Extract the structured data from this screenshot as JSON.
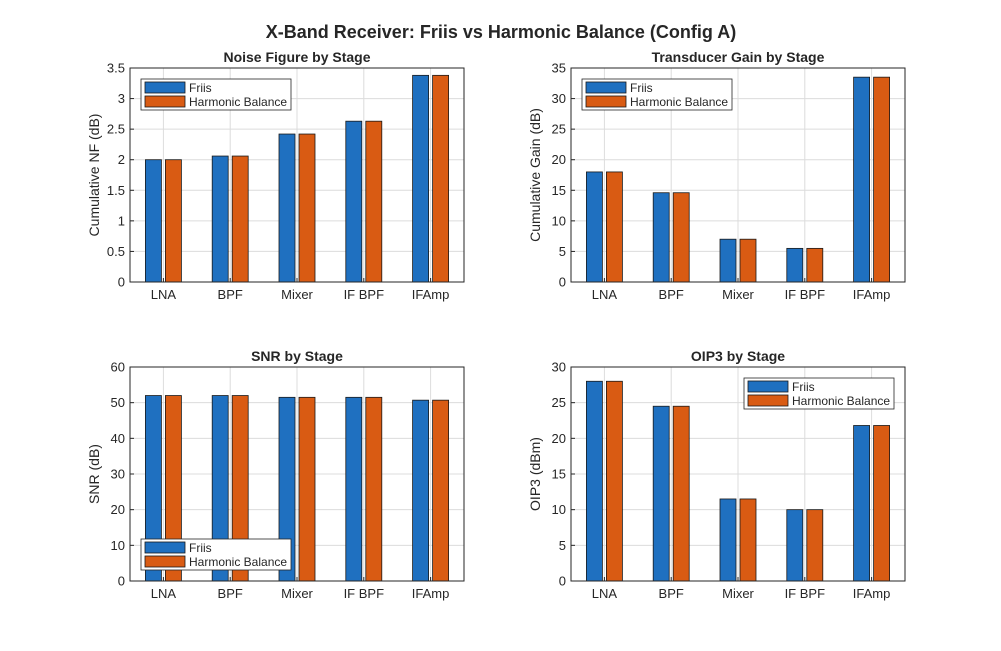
{
  "figure": {
    "title": "X-Band Receiver: Friis vs Harmonic Balance (Config A)"
  },
  "colors": {
    "friis": "#1f70c0",
    "harmonic_balance": "#d95b13",
    "grid": "#dcdcdc",
    "axis": "#262626"
  },
  "chart_data": [
    {
      "type": "bar",
      "title": "Noise Figure by Stage",
      "xlabel": "",
      "ylabel": "Cumulative NF (dB)",
      "categories": [
        "LNA",
        "BPF",
        "Mixer",
        "IF BPF",
        "IFAmp"
      ],
      "ylim": [
        0,
        3.5
      ],
      "yticks": [
        "0",
        "0.5",
        "1",
        "1.5",
        "2",
        "2.5",
        "3",
        "3.5"
      ],
      "grid": true,
      "legend_position": "top-left",
      "series": [
        {
          "name": "Friis",
          "values": [
            2.0,
            2.06,
            2.42,
            2.63,
            3.38
          ]
        },
        {
          "name": "Harmonic Balance",
          "values": [
            2.0,
            2.06,
            2.42,
            2.63,
            3.38
          ]
        }
      ]
    },
    {
      "type": "bar",
      "title": "Transducer Gain by Stage",
      "xlabel": "",
      "ylabel": "Cumulative Gain (dB)",
      "categories": [
        "LNA",
        "BPF",
        "Mixer",
        "IF BPF",
        "IFAmp"
      ],
      "ylim": [
        0,
        35
      ],
      "yticks": [
        "0",
        "5",
        "10",
        "15",
        "20",
        "25",
        "30",
        "35"
      ],
      "grid": true,
      "legend_position": "top-left",
      "series": [
        {
          "name": "Friis",
          "values": [
            18.0,
            14.6,
            7.0,
            5.5,
            33.5
          ]
        },
        {
          "name": "Harmonic Balance",
          "values": [
            18.0,
            14.6,
            7.0,
            5.5,
            33.5
          ]
        }
      ]
    },
    {
      "type": "bar",
      "title": "SNR by Stage",
      "xlabel": "",
      "ylabel": "SNR (dB)",
      "categories": [
        "LNA",
        "BPF",
        "Mixer",
        "IF BPF",
        "IFAmp"
      ],
      "ylim": [
        0,
        60
      ],
      "yticks": [
        "0",
        "10",
        "20",
        "30",
        "40",
        "50",
        "60"
      ],
      "grid": true,
      "legend_position": "bottom-left",
      "series": [
        {
          "name": "Friis",
          "values": [
            52.0,
            52.0,
            51.5,
            51.5,
            50.7
          ]
        },
        {
          "name": "Harmonic Balance",
          "values": [
            52.0,
            52.0,
            51.5,
            51.5,
            50.7
          ]
        }
      ]
    },
    {
      "type": "bar",
      "title": "OIP3 by Stage",
      "xlabel": "",
      "ylabel": "OIP3 (dBm)",
      "categories": [
        "LNA",
        "BPF",
        "Mixer",
        "IF BPF",
        "IFAmp"
      ],
      "ylim": [
        0,
        30
      ],
      "yticks": [
        "0",
        "5",
        "10",
        "15",
        "20",
        "25",
        "30"
      ],
      "grid": true,
      "legend_position": "top-right",
      "series": [
        {
          "name": "Friis",
          "values": [
            28.0,
            24.5,
            11.5,
            10.0,
            21.8
          ]
        },
        {
          "name": "Harmonic Balance",
          "values": [
            28.0,
            24.5,
            11.5,
            10.0,
            21.8
          ]
        }
      ]
    }
  ]
}
